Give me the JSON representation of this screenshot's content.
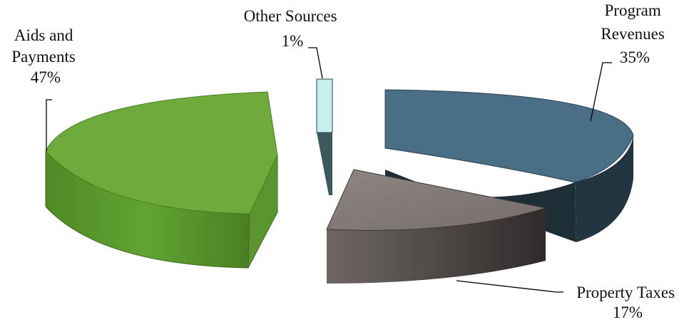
{
  "chart_data": {
    "type": "pie",
    "title": "",
    "slices": [
      {
        "name": "Program Revenues",
        "label_lines": [
          "Program",
          "Revenues",
          "35%"
        ],
        "value": 35,
        "color": "#4a6e86"
      },
      {
        "name": "Property Taxes",
        "label_lines": [
          "Property Taxes",
          "17%"
        ],
        "value": 17,
        "color": "#847c78"
      },
      {
        "name": "Aids and Payments",
        "label_lines": [
          "Aids and",
          "Payments",
          "47%"
        ],
        "value": 47,
        "color": "#6faa3c"
      },
      {
        "name": "Other Sources",
        "label_lines": [
          "Other Sources",
          "1%"
        ],
        "value": 1,
        "color": "#c6f0ee"
      }
    ],
    "style": "3d-exploded"
  }
}
